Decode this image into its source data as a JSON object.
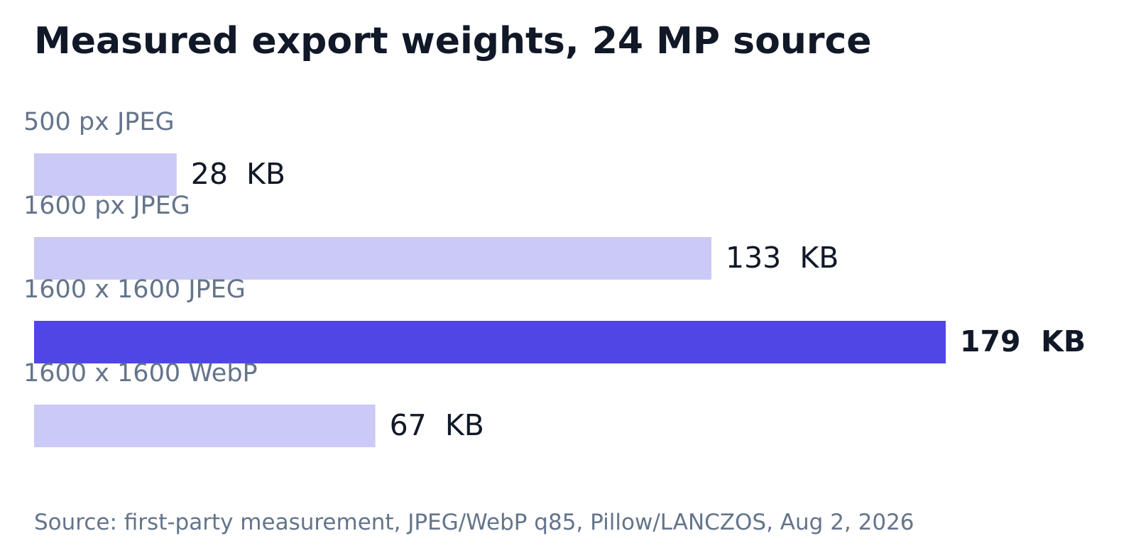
{
  "chart_data": {
    "type": "bar",
    "orientation": "horizontal",
    "title": "Measured export weights, 24 MP source",
    "categories": [
      "500 px JPEG",
      "1600 px JPEG",
      "1600 x 1600 JPEG",
      "1600 x 1600 WebP"
    ],
    "values": [
      28,
      133,
      179,
      67
    ],
    "unit": "KB",
    "value_labels": [
      "28  KB",
      "133  KB",
      "179  KB",
      "67  KB"
    ],
    "highlight_index": 2,
    "xlim": [
      0,
      179
    ],
    "grid": false,
    "legend": "none",
    "source": "Source: first-party measurement, JPEG/WebP q85, Pillow/LANCZOS, Aug 2, 2026"
  },
  "colors": {
    "title": "#111827",
    "category_label": "#64748b",
    "value_label": "#111827",
    "bar": "#cbc9f5",
    "bar_highlight": "#4f46e5",
    "source": "#64748b"
  }
}
